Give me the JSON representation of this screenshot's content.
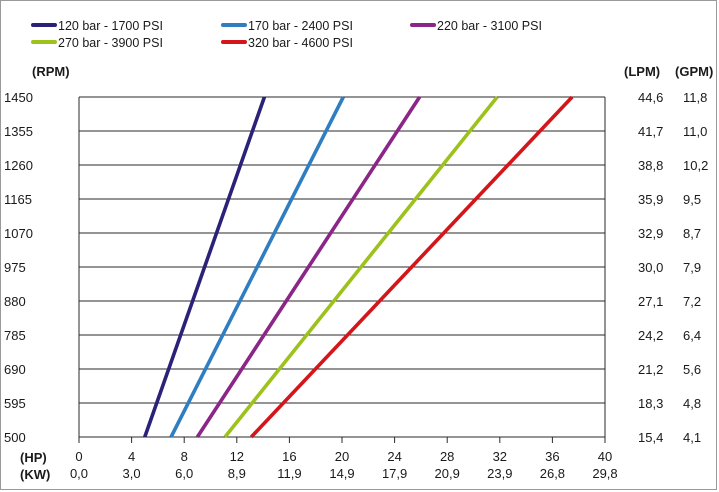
{
  "chart_data": {
    "type": "line",
    "left_axis_unit": "(RPM)",
    "right_axis_units": [
      "(LPM)",
      "(GPM)"
    ],
    "bottom_axis_units": [
      "(HP)",
      "(KW)"
    ],
    "y_ticks": [
      500,
      595,
      690,
      785,
      880,
      975,
      1070,
      1165,
      1260,
      1355,
      1450
    ],
    "lpm_ticks": [
      "15,4",
      "18,3",
      "21,2",
      "24,2",
      "27,1",
      "30,0",
      "32,9",
      "35,9",
      "38,8",
      "41,7",
      "44,6"
    ],
    "gpm_ticks": [
      "4,1",
      "4,8",
      "5,6",
      "6,4",
      "7,2",
      "7,9",
      "8,7",
      "9,5",
      "10,2",
      "11,0",
      "11,8"
    ],
    "hp_ticks": [
      "0",
      "4",
      "8",
      "12",
      "16",
      "20",
      "24",
      "28",
      "32",
      "36",
      "40"
    ],
    "kw_ticks": [
      "0,0",
      "3,0",
      "6,0",
      "8,9",
      "11,9",
      "14,9",
      "17,9",
      "20,9",
      "23,9",
      "26,8",
      "29,8"
    ],
    "xlim": [
      0,
      40
    ],
    "ylim": [
      500,
      1450
    ],
    "grid": "horizontal",
    "legend_position": "top-left",
    "series": [
      {
        "name": "120 bar - 1700 PSI",
        "color": "#2a2278",
        "points": [
          [
            5.0,
            500
          ],
          [
            14.1,
            1450
          ]
        ]
      },
      {
        "name": "170 bar - 2400 PSI",
        "color": "#2f7ec1",
        "points": [
          [
            7.0,
            500
          ],
          [
            20.1,
            1450
          ]
        ]
      },
      {
        "name": "220 bar - 3100 PSI",
        "color": "#8b2587",
        "points": [
          [
            9.0,
            500
          ],
          [
            25.9,
            1450
          ]
        ]
      },
      {
        "name": "270 bar - 3900 PSI",
        "color": "#9cc21b",
        "points": [
          [
            11.1,
            500
          ],
          [
            31.8,
            1450
          ]
        ]
      },
      {
        "name": "320 bar - 4600 PSI",
        "color": "#d4161a",
        "points": [
          [
            13.1,
            500
          ],
          [
            37.5,
            1450
          ]
        ]
      }
    ]
  }
}
